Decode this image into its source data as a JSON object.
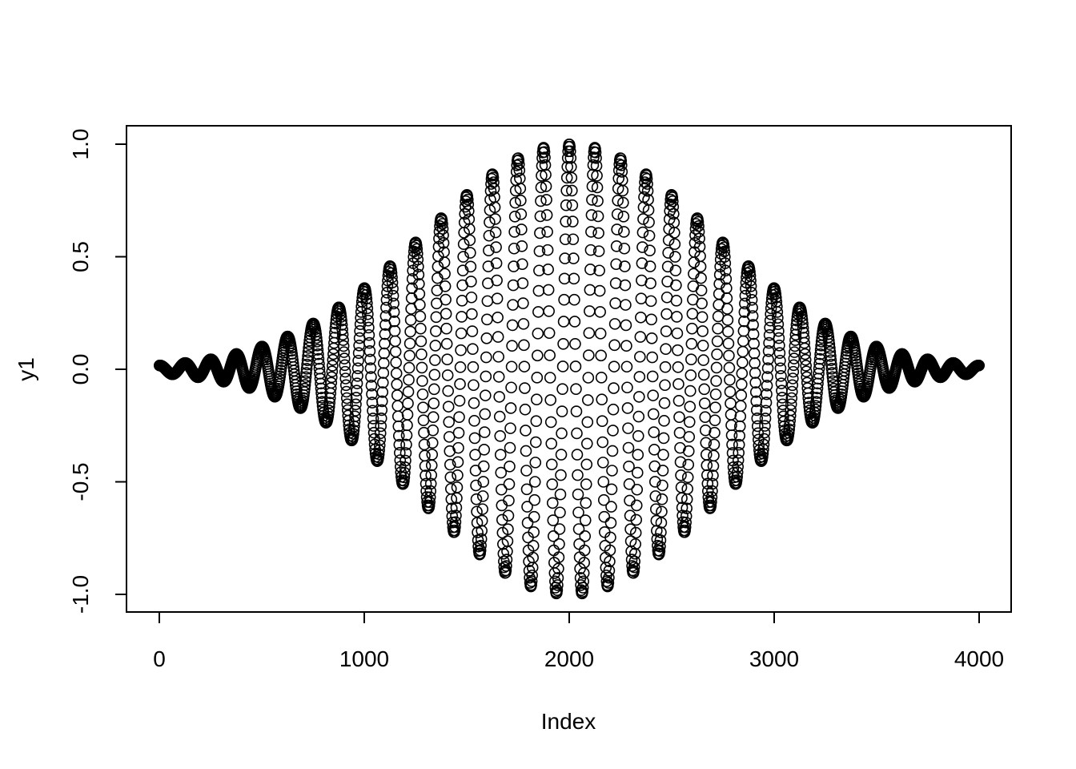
{
  "chart_data": {
    "type": "scatter",
    "title": "",
    "xlabel": "Index",
    "ylabel": "y1",
    "xlim": [
      0,
      4000
    ],
    "ylim": [
      -1.0,
      1.0
    ],
    "xticks": [
      0,
      1000,
      2000,
      3000,
      4000
    ],
    "xtick_labels": [
      "0",
      "1000",
      "2000",
      "3000",
      "4000"
    ],
    "yticks": [
      -1.0,
      -0.5,
      0.0,
      0.5,
      1.0
    ],
    "ytick_labels": [
      "-1.0",
      "-0.5",
      "0.0",
      "0.5",
      "1.0"
    ],
    "grid": false,
    "marker": "open-circle",
    "series": [
      {
        "index_start": 1,
        "index_end": 4000,
        "function": "gaussian-modulated sinusoid",
        "peak_index": 2000,
        "envelope_sd": 700,
        "period": 125,
        "amplitude": 1.0
      }
    ]
  }
}
